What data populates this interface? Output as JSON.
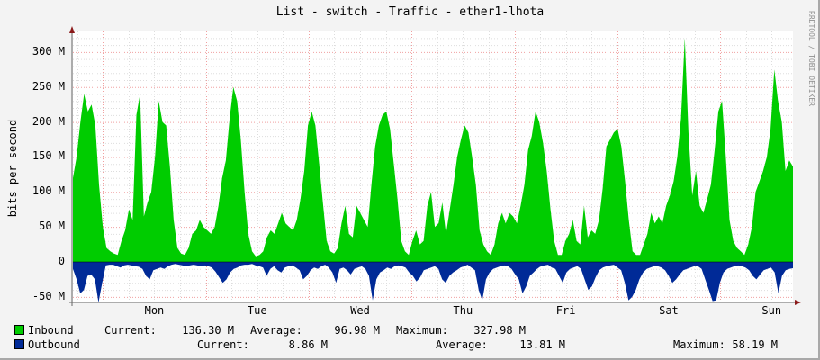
{
  "title": "List - switch - Traffic - ether1-lhota",
  "watermark": "RRDTOOL / TOBI OETIKER",
  "colors": {
    "inbound": "#00cc00",
    "outbound": "#002a97",
    "grid_minor": "#dddddd",
    "grid_major": "#f0a0a0",
    "axis": "#666666",
    "arrow": "#8b1a1a"
  },
  "legend": {
    "inbound": {
      "label": "Inbound",
      "current_label": "Current:",
      "current": "136.30 M",
      "average_label": "Average:",
      "average": "96.98 M",
      "maximum_label": "Maximum:",
      "maximum": "327.98 M"
    },
    "outbound": {
      "label": "Outbound",
      "current_label": "Current:",
      "current": "8.86 M",
      "average_label": "Average:",
      "average": "13.81 M",
      "maximum_label": "Maximum:",
      "maximum": "58.19 M"
    }
  },
  "chart_data": {
    "type": "area",
    "title": "List - switch - Traffic - ether1-lhota",
    "xlabel": "",
    "ylabel": "bits per second",
    "ylim": [
      -58,
      330
    ],
    "y_unit": "M",
    "yticks": [
      "300 M",
      "250 M",
      "200 M",
      "150 M",
      "100 M",
      "50 M",
      "0",
      "-50 M"
    ],
    "ytick_values": [
      300,
      250,
      200,
      150,
      100,
      50,
      0,
      -50
    ],
    "categories": [
      "Mon",
      "Tue",
      "Wed",
      "Thu",
      "Fri",
      "Sat",
      "Sun"
    ],
    "grid": true,
    "legend_position": "bottom",
    "x_hours_per_point": 2,
    "series": [
      {
        "name": "Inbound",
        "color": "#00cc00",
        "current": 136.3,
        "average": 96.98,
        "maximum": 327.98,
        "values": [
          120,
          150,
          200,
          240,
          215,
          225,
          195,
          110,
          50,
          20,
          15,
          12,
          10,
          30,
          45,
          75,
          60,
          210,
          240,
          65,
          85,
          100,
          150,
          230,
          200,
          195,
          135,
          60,
          20,
          12,
          10,
          20,
          40,
          45,
          60,
          50,
          45,
          40,
          50,
          80,
          120,
          145,
          205,
          250,
          230,
          175,
          100,
          40,
          15,
          8,
          10,
          15,
          35,
          45,
          40,
          55,
          70,
          55,
          50,
          45,
          60,
          90,
          130,
          195,
          215,
          195,
          140,
          85,
          30,
          15,
          12,
          20,
          55,
          80,
          40,
          35,
          80,
          70,
          60,
          50,
          110,
          165,
          195,
          210,
          215,
          190,
          140,
          90,
          30,
          15,
          10,
          30,
          45,
          25,
          30,
          80,
          100,
          50,
          55,
          85,
          40,
          75,
          110,
          150,
          175,
          195,
          185,
          150,
          110,
          45,
          25,
          15,
          10,
          25,
          55,
          70,
          55,
          70,
          65,
          55,
          80,
          110,
          160,
          180,
          215,
          200,
          170,
          130,
          75,
          30,
          10,
          10,
          30,
          40,
          60,
          30,
          25,
          80,
          35,
          45,
          40,
          60,
          105,
          165,
          175,
          185,
          190,
          165,
          115,
          60,
          15,
          10,
          10,
          25,
          40,
          70,
          55,
          65,
          55,
          80,
          95,
          115,
          150,
          205,
          320,
          185,
          95,
          130,
          80,
          70,
          90,
          110,
          160,
          215,
          230,
          150,
          60,
          30,
          20,
          15,
          10,
          25,
          50,
          100,
          115,
          130,
          150,
          190,
          275,
          230,
          200,
          130,
          145,
          136
        ]
      },
      {
        "name": "Outbound",
        "color": "#002a97",
        "current": -8.86,
        "average": -13.81,
        "maximum": -58.19,
        "values": [
          -10,
          -25,
          -45,
          -40,
          -20,
          -18,
          -25,
          -58,
          -30,
          -5,
          -4,
          -4,
          -6,
          -8,
          -5,
          -4,
          -5,
          -6,
          -7,
          -10,
          -20,
          -25,
          -12,
          -10,
          -8,
          -10,
          -6,
          -4,
          -3,
          -4,
          -5,
          -6,
          -5,
          -4,
          -5,
          -6,
          -5,
          -6,
          -8,
          -14,
          -22,
          -30,
          -25,
          -15,
          -10,
          -8,
          -5,
          -4,
          -4,
          -3,
          -5,
          -6,
          -8,
          -20,
          -10,
          -6,
          -12,
          -15,
          -8,
          -6,
          -5,
          -8,
          -12,
          -25,
          -20,
          -12,
          -8,
          -10,
          -6,
          -4,
          -8,
          -15,
          -30,
          -10,
          -8,
          -12,
          -18,
          -10,
          -8,
          -6,
          -10,
          -20,
          -55,
          -25,
          -15,
          -12,
          -8,
          -10,
          -6,
          -5,
          -6,
          -8,
          -15,
          -20,
          -28,
          -22,
          -12,
          -10,
          -8,
          -6,
          -10,
          -25,
          -30,
          -20,
          -15,
          -12,
          -8,
          -6,
          -4,
          -8,
          -12,
          -40,
          -55,
          -25,
          -15,
          -10,
          -8,
          -6,
          -5,
          -6,
          -10,
          -18,
          -25,
          -45,
          -35,
          -20,
          -15,
          -10,
          -6,
          -5,
          -4,
          -8,
          -10,
          -20,
          -30,
          -15,
          -10,
          -8,
          -6,
          -10,
          -25,
          -40,
          -35,
          -22,
          -12,
          -8,
          -6,
          -5,
          -4,
          -8,
          -12,
          -30,
          -55,
          -50,
          -40,
          -25,
          -15,
          -10,
          -8,
          -6,
          -6,
          -8,
          -12,
          -20,
          -30,
          -25,
          -18,
          -12,
          -10,
          -8,
          -6,
          -6,
          -10,
          -25,
          -40,
          -56,
          -55,
          -30,
          -15,
          -10,
          -8,
          -6,
          -5,
          -6,
          -8,
          -12,
          -20,
          -25,
          -18,
          -12,
          -10,
          -8,
          -15,
          -45,
          -20,
          -12,
          -10,
          -9
        ]
      }
    ]
  }
}
